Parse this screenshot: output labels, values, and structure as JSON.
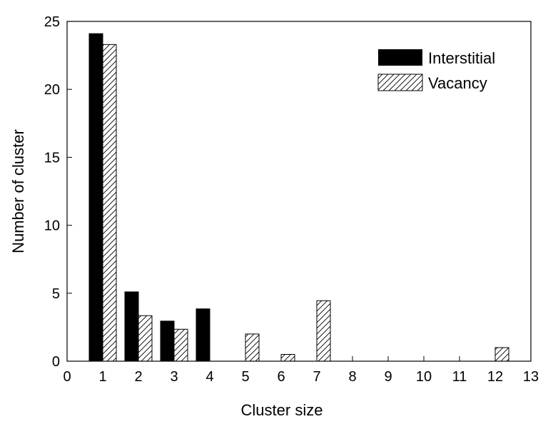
{
  "chart_data": {
    "type": "bar",
    "title": "",
    "xlabel": "Cluster size",
    "ylabel": "Number of cluster",
    "xlim": [
      0,
      13
    ],
    "ylim": [
      0,
      25
    ],
    "xticks": [
      0,
      1,
      2,
      3,
      4,
      5,
      6,
      7,
      8,
      9,
      10,
      11,
      12,
      13
    ],
    "yticks": [
      0,
      5,
      10,
      15,
      20,
      25
    ],
    "grid": false,
    "legend_position": "top-right",
    "categories": [
      1,
      2,
      3,
      4,
      5,
      6,
      7,
      12
    ],
    "series": [
      {
        "name": "Interstitial",
        "fill": "solid-black",
        "color": "#000000",
        "values": [
          24.1,
          5.1,
          2.95,
          3.85,
          0,
          0,
          0,
          0
        ]
      },
      {
        "name": "Vacancy",
        "fill": "hatched",
        "color": "#000000",
        "values": [
          23.3,
          3.35,
          2.35,
          0,
          2.0,
          0.5,
          4.45,
          1.0
        ]
      }
    ]
  }
}
